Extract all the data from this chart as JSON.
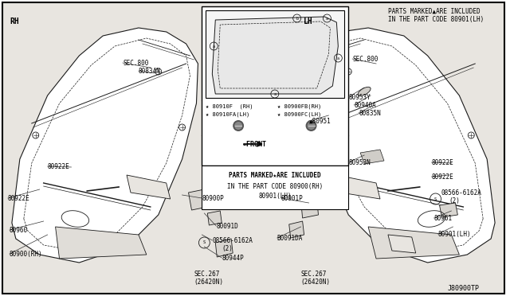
{
  "bg_color": "#ffffff",
  "outer_bg": "#e8e5e0",
  "line_color": "#1a1a1a",
  "text_color": "#000000",
  "fig_width": 6.4,
  "fig_height": 3.72,
  "dpi": 100,
  "diagram_code": "J80900TP",
  "top_right_note_1": "PARTS MARKED▲ARE INCLUDED",
  "top_right_note_2": "IN THE PART CODE 80901(LH)",
  "center_note_1": "PARTS MARKED★ARE INCLUDED",
  "center_note_2": "IN THE PART CODE 80900(RH)",
  "center_note_3": "80901(LH)",
  "front_label": "⇐FRONT",
  "rh_label": "RH",
  "lh_label": "LH",
  "legend_left_1": "★ 80910F  (RH)",
  "legend_left_2": "★ 80910FA(LH)",
  "legend_right_1": "★ 80900FB(RH)",
  "legend_right_2": "★ 80900FC(LH)"
}
